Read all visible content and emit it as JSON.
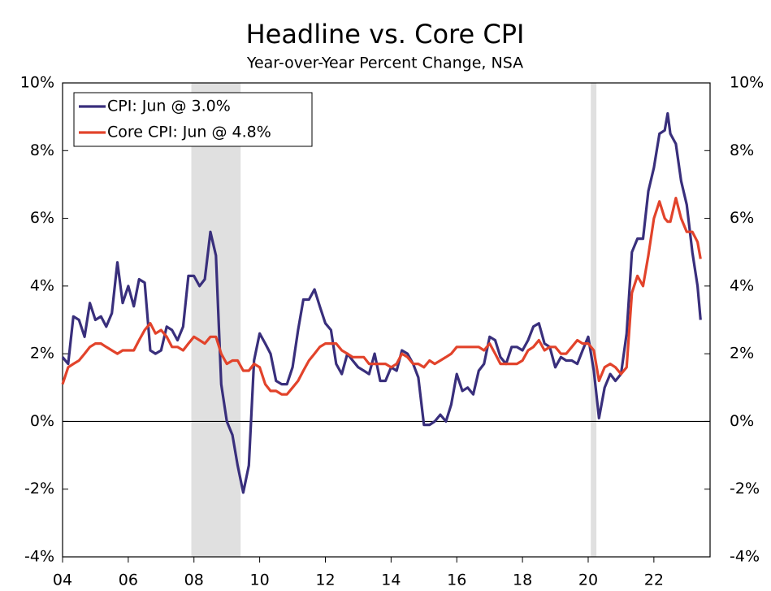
{
  "chart_data": {
    "type": "line",
    "title": "Headline vs. Core CPI",
    "subtitle": "Year-over-Year Percent Change, NSA",
    "x": [
      2004,
      2004.17,
      2004.33,
      2004.5,
      2004.67,
      2004.83,
      2005,
      2005.17,
      2005.33,
      2005.5,
      2005.67,
      2005.83,
      2006,
      2006.17,
      2006.33,
      2006.5,
      2006.67,
      2006.83,
      2007,
      2007.17,
      2007.33,
      2007.5,
      2007.67,
      2007.83,
      2008,
      2008.17,
      2008.33,
      2008.5,
      2008.67,
      2008.83,
      2009,
      2009.17,
      2009.33,
      2009.5,
      2009.67,
      2009.83,
      2010,
      2010.17,
      2010.33,
      2010.5,
      2010.67,
      2010.83,
      2011,
      2011.17,
      2011.33,
      2011.5,
      2011.67,
      2011.83,
      2012,
      2012.17,
      2012.33,
      2012.5,
      2012.67,
      2012.83,
      2013,
      2013.17,
      2013.33,
      2013.5,
      2013.67,
      2013.83,
      2014,
      2014.17,
      2014.33,
      2014.5,
      2014.67,
      2014.83,
      2015,
      2015.17,
      2015.33,
      2015.5,
      2015.67,
      2015.83,
      2016,
      2016.17,
      2016.33,
      2016.5,
      2016.67,
      2016.83,
      2017,
      2017.17,
      2017.33,
      2017.5,
      2017.67,
      2017.83,
      2018,
      2018.17,
      2018.33,
      2018.5,
      2018.67,
      2018.83,
      2019,
      2019.17,
      2019.33,
      2019.5,
      2019.67,
      2019.83,
      2020,
      2020.17,
      2020.33,
      2020.5,
      2020.67,
      2020.83,
      2021,
      2021.17,
      2021.33,
      2021.5,
      2021.67,
      2021.83,
      2022,
      2022.17,
      2022.33,
      2022.42,
      2022.5,
      2022.67,
      2022.83,
      2023,
      2023.17,
      2023.33,
      2023.42
    ],
    "series": [
      {
        "name": "CPI: Jun @ 3.0%",
        "color": "#392f7c",
        "values": [
          1.9,
          1.7,
          3.1,
          3.0,
          2.5,
          3.5,
          3.0,
          3.1,
          2.8,
          3.2,
          4.7,
          3.5,
          4.0,
          3.4,
          4.2,
          4.1,
          2.1,
          2.0,
          2.1,
          2.8,
          2.7,
          2.4,
          2.8,
          4.3,
          4.3,
          4.0,
          4.2,
          5.6,
          4.9,
          1.1,
          0.0,
          -0.4,
          -1.3,
          -2.1,
          -1.3,
          1.8,
          2.6,
          2.3,
          2.0,
          1.2,
          1.1,
          1.1,
          1.6,
          2.7,
          3.6,
          3.6,
          3.9,
          3.4,
          2.9,
          2.7,
          1.7,
          1.4,
          2.0,
          1.8,
          1.6,
          1.5,
          1.4,
          2.0,
          1.2,
          1.2,
          1.6,
          1.5,
          2.1,
          2.0,
          1.7,
          1.3,
          -0.1,
          -0.1,
          0.0,
          0.2,
          0.0,
          0.5,
          1.4,
          0.9,
          1.0,
          0.8,
          1.5,
          1.7,
          2.5,
          2.4,
          1.9,
          1.7,
          2.2,
          2.2,
          2.1,
          2.4,
          2.8,
          2.9,
          2.3,
          2.2,
          1.6,
          1.9,
          1.8,
          1.8,
          1.7,
          2.1,
          2.5,
          1.5,
          0.1,
          1.0,
          1.4,
          1.2,
          1.4,
          2.6,
          5.0,
          5.4,
          5.4,
          6.8,
          7.5,
          8.5,
          8.6,
          9.1,
          8.5,
          8.2,
          7.1,
          6.4,
          5.0,
          4.0,
          3.0
        ]
      },
      {
        "name": "Core CPI: Jun @ 4.8%",
        "color": "#e2432b",
        "values": [
          1.1,
          1.6,
          1.7,
          1.8,
          2.0,
          2.2,
          2.3,
          2.3,
          2.2,
          2.1,
          2.0,
          2.1,
          2.1,
          2.1,
          2.4,
          2.7,
          2.9,
          2.6,
          2.7,
          2.5,
          2.2,
          2.2,
          2.1,
          2.3,
          2.5,
          2.4,
          2.3,
          2.5,
          2.5,
          2.0,
          1.7,
          1.8,
          1.8,
          1.5,
          1.5,
          1.7,
          1.6,
          1.1,
          0.9,
          0.9,
          0.8,
          0.8,
          1.0,
          1.2,
          1.5,
          1.8,
          2.0,
          2.2,
          2.3,
          2.3,
          2.3,
          2.1,
          2.0,
          1.9,
          1.9,
          1.9,
          1.7,
          1.7,
          1.7,
          1.7,
          1.6,
          1.7,
          2.0,
          1.9,
          1.7,
          1.7,
          1.6,
          1.8,
          1.7,
          1.8,
          1.9,
          2.0,
          2.2,
          2.2,
          2.2,
          2.2,
          2.2,
          2.1,
          2.3,
          2.0,
          1.7,
          1.7,
          1.7,
          1.7,
          1.8,
          2.1,
          2.2,
          2.4,
          2.1,
          2.2,
          2.2,
          2.0,
          2.0,
          2.2,
          2.4,
          2.3,
          2.3,
          2.1,
          1.2,
          1.6,
          1.7,
          1.6,
          1.4,
          1.6,
          3.8,
          4.3,
          4.0,
          4.9,
          6.0,
          6.5,
          6.0,
          5.9,
          5.9,
          6.6,
          6.0,
          5.6,
          5.6,
          5.3,
          4.8
        ]
      }
    ],
    "recessions": [
      [
        2007.92,
        2009.42
      ],
      [
        2020.08,
        2020.25
      ]
    ],
    "recession_color": "#e0e0e0",
    "xlim": [
      2004,
      2023.71
    ],
    "xticks": [
      {
        "value": 2004,
        "label": "04"
      },
      {
        "value": 2006,
        "label": "06"
      },
      {
        "value": 2008,
        "label": "08"
      },
      {
        "value": 2010,
        "label": "10"
      },
      {
        "value": 2012,
        "label": "12"
      },
      {
        "value": 2014,
        "label": "14"
      },
      {
        "value": 2016,
        "label": "16"
      },
      {
        "value": 2018,
        "label": "18"
      },
      {
        "value": 2020,
        "label": "20"
      },
      {
        "value": 2022,
        "label": "22"
      }
    ],
    "ylim": [
      -4,
      10
    ],
    "yticks": [
      {
        "value": -4,
        "label": "-4%"
      },
      {
        "value": -2,
        "label": "-2%"
      },
      {
        "value": 0,
        "label": "0%"
      },
      {
        "value": 2,
        "label": "2%"
      },
      {
        "value": 4,
        "label": "4%"
      },
      {
        "value": 6,
        "label": "6%"
      },
      {
        "value": 8,
        "label": "8%"
      },
      {
        "value": 10,
        "label": "10%"
      }
    ],
    "legend": "upper left"
  }
}
